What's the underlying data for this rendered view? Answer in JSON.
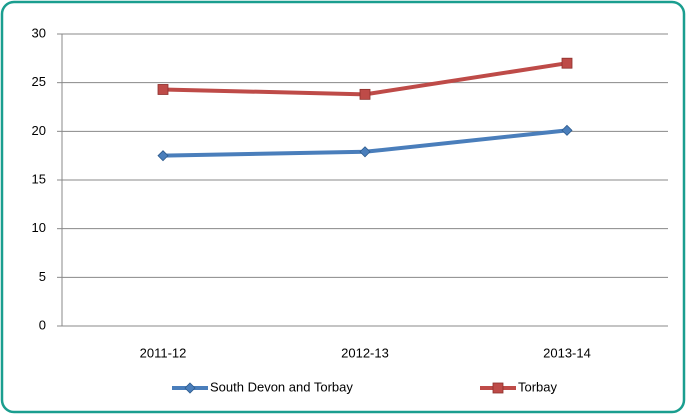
{
  "chart_data": {
    "type": "line",
    "categories": [
      "2011-12",
      "2012-13",
      "2013-14"
    ],
    "series": [
      {
        "name": "South Devon and Torbay",
        "color": "#4a7ebb",
        "marker": "diamond",
        "values": [
          17.5,
          17.9,
          20.1
        ]
      },
      {
        "name": "Torbay",
        "color": "#be4b48",
        "marker": "square",
        "values": [
          24.3,
          23.8,
          27.0
        ]
      }
    ],
    "ylim": [
      0,
      30
    ],
    "yticks": [
      0,
      5,
      10,
      15,
      20,
      25,
      30
    ],
    "grid": true,
    "legend": "bottom"
  }
}
